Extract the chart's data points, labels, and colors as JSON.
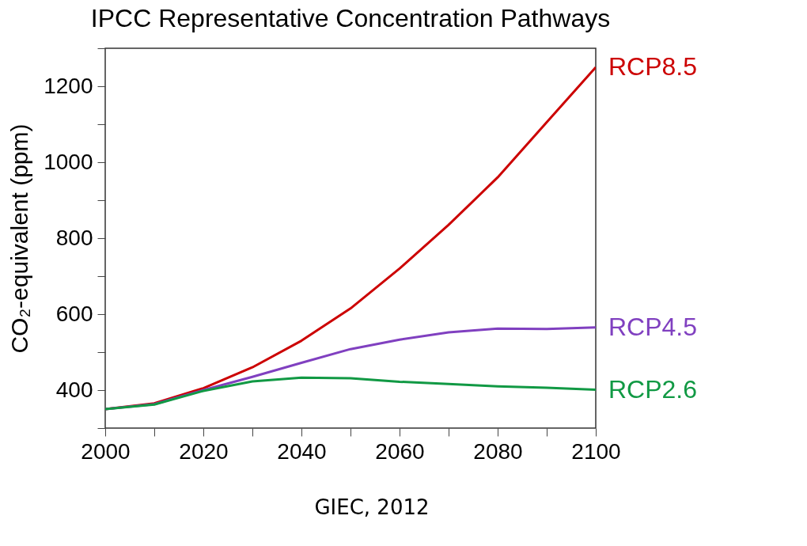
{
  "chart_data": {
    "type": "line",
    "title": "IPCC Representative Concentration Pathways",
    "ylabel": "CO₂-equivalent (ppm)",
    "x": [
      2000,
      2010,
      2020,
      2030,
      2040,
      2050,
      2060,
      2070,
      2080,
      2090,
      2100
    ],
    "series": [
      {
        "name": "RCP8.5",
        "color": "#cc0000",
        "values": [
          350,
          365,
          405,
          460,
          530,
          615,
          720,
          835,
          960,
          1105,
          1250
        ]
      },
      {
        "name": "RCP4.5",
        "color": "#8040c0",
        "values": [
          350,
          363,
          400,
          435,
          472,
          508,
          533,
          552,
          562,
          561,
          565
        ]
      },
      {
        "name": "RCP2.6",
        "color": "#119944",
        "values": [
          350,
          362,
          398,
          423,
          433,
          431,
          422,
          416,
          410,
          406,
          401
        ]
      }
    ],
    "xlim": [
      2000,
      2100
    ],
    "ylim": [
      300,
      1300
    ],
    "xticks": [
      2000,
      {
        "value": 2010,
        "label": null
      },
      2020,
      {
        "value": 2030,
        "label": null
      },
      2040,
      {
        "value": 2050,
        "label": null
      },
      2060,
      {
        "value": 2070,
        "label": null
      },
      2080,
      {
        "value": 2090,
        "label": null
      },
      2100
    ],
    "yticks": [
      {
        "value": 300,
        "label": null
      },
      400,
      {
        "value": 500,
        "label": null
      },
      600,
      {
        "value": 700,
        "label": null
      },
      800,
      {
        "value": 900,
        "label": null
      },
      1000,
      {
        "value": 1100,
        "label": null
      },
      1200,
      {
        "value": 1300,
        "label": null
      }
    ],
    "grid": false,
    "legend": false,
    "line_style": "solid",
    "marker": "none",
    "annotations": [
      "GIEC, 2012"
    ]
  }
}
